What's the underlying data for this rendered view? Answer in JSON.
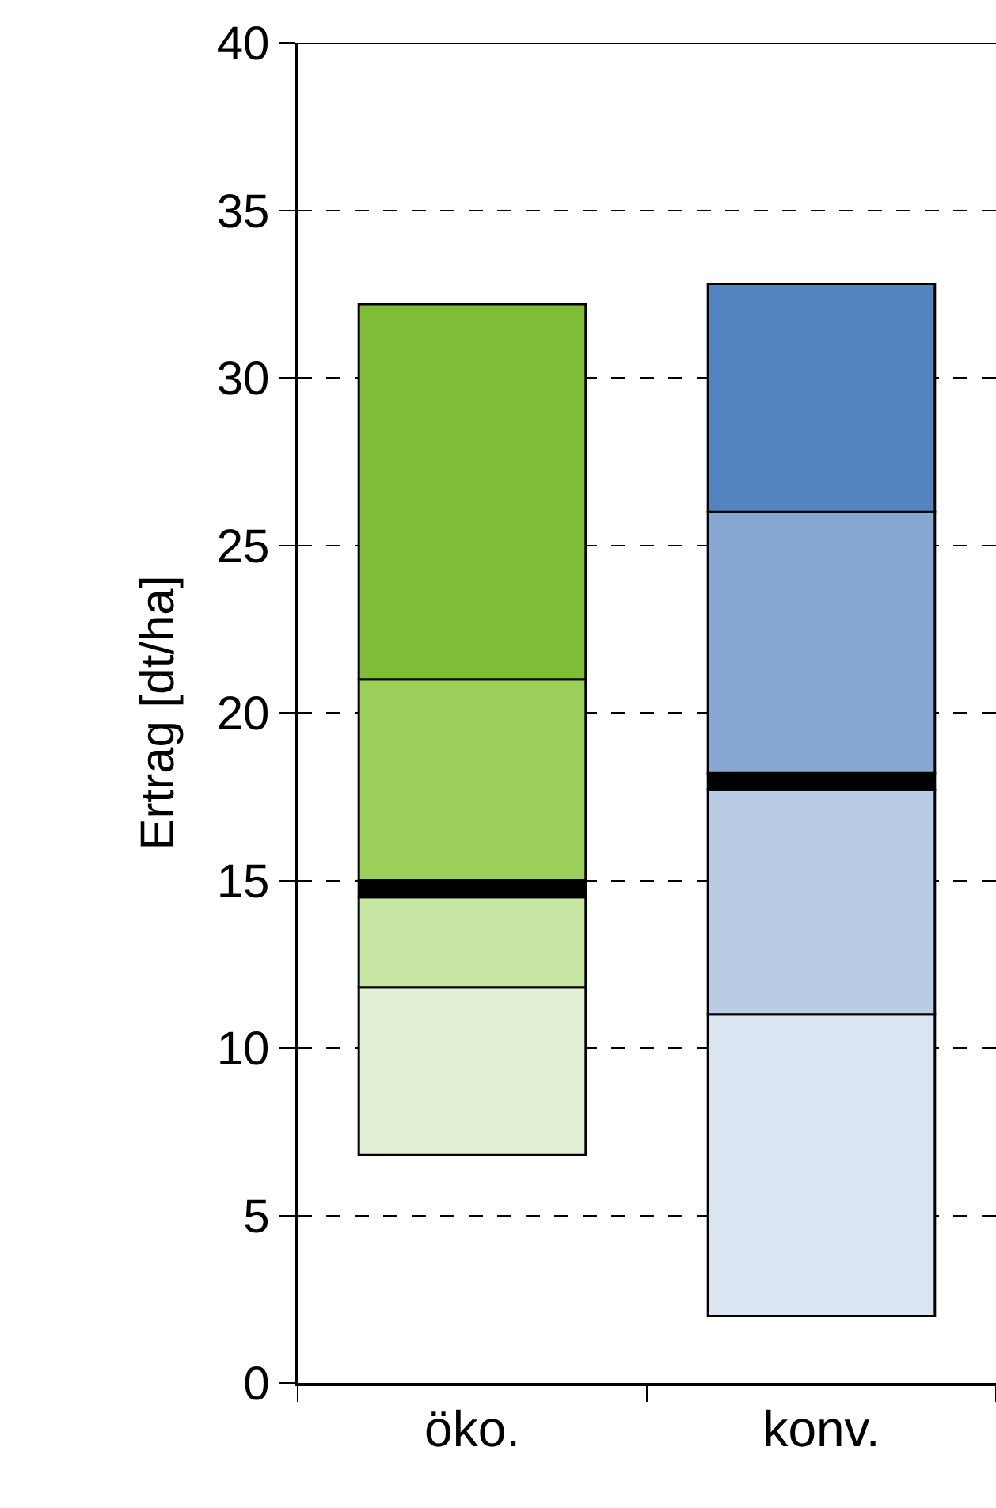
{
  "chart_data": {
    "type": "bar",
    "ylabel": "Ertrag [dt/ha]",
    "categories": [
      "öko.",
      "konv."
    ],
    "series": [
      {
        "colors": [
          "#e3f0d6",
          "#dbe4f1"
        ],
        "base": [
          6.8,
          2.0
        ],
        "values": [
          5.0,
          9.0
        ]
      },
      {
        "colors": [
          "#c7e5a3",
          "#b9cce4"
        ],
        "base": [
          11.8,
          11.0
        ],
        "values": [
          2.7,
          6.7
        ]
      },
      {
        "colors": [
          "#000000",
          "#000000"
        ],
        "base": [
          14.5,
          17.7
        ],
        "values": [
          0.5,
          0.5
        ]
      },
      {
        "colors": [
          "#9dd05a",
          "#87a8d3"
        ],
        "base": [
          15.0,
          18.2
        ],
        "values": [
          6.0,
          7.8
        ]
      },
      {
        "colors": [
          "#80bd37",
          "#5285c0"
        ],
        "base": [
          21.0,
          26.0
        ],
        "values": [
          11.2,
          6.8
        ]
      }
    ],
    "ylim": [
      0,
      40
    ],
    "yticks": [
      0,
      5,
      10,
      15,
      20,
      25,
      30,
      35,
      40
    ],
    "grid": "y"
  }
}
